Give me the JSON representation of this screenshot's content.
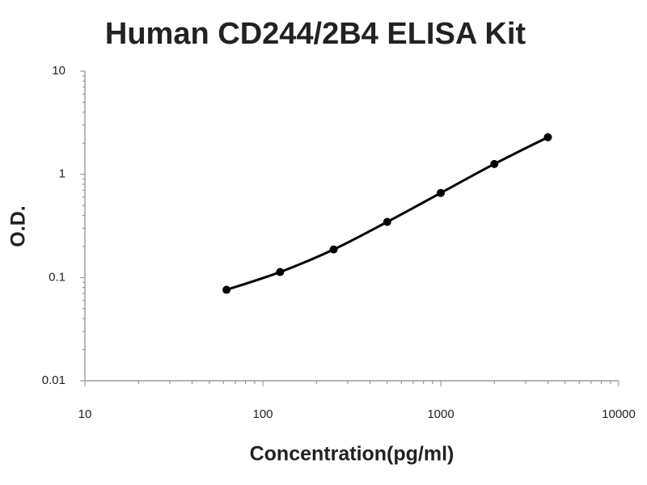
{
  "chart_data": {
    "type": "line",
    "title": "Human CD244/2B4 ELISA Kit",
    "x_label": "Concentration(pg/ml)",
    "y_label": "O.D.",
    "x": [
      62.5,
      125,
      250,
      500,
      1000,
      2000,
      4000
    ],
    "values": [
      0.076,
      0.113,
      0.187,
      0.346,
      0.66,
      1.26,
      2.29
    ],
    "color": "#000000",
    "markers": true,
    "xscale": "log",
    "yscale": "log",
    "xlim": [
      10,
      10000
    ],
    "ylim": [
      0.01,
      10
    ],
    "xticks": [
      10,
      100,
      1000,
      10000
    ],
    "yticks": [
      0.01,
      0.1,
      1,
      10
    ],
    "grid": false
  }
}
